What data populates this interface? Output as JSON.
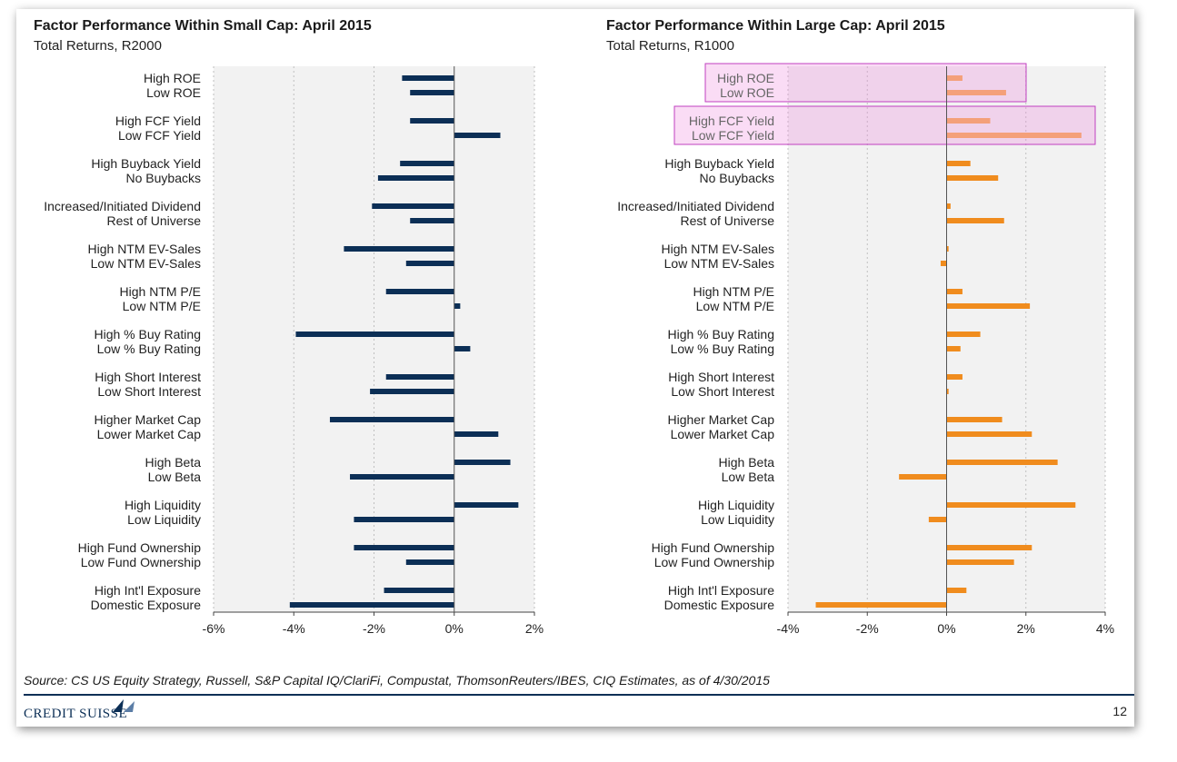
{
  "left": {
    "title": "Factor Performance Within Small Cap: April 2015",
    "subtitle": "Total Returns, R2000"
  },
  "right": {
    "title": "Factor Performance Within Large Cap: April 2015",
    "subtitle": "Total Returns, R1000"
  },
  "footer": {
    "source": "Source: CS US Equity Strategy, Russell, S&P Capital IQ/ClariFi, Compustat, ThomsonReuters/IBES, CIQ Estimates, as of 4/30/2015",
    "logo": "CREDIT SUISSE",
    "page": "12"
  },
  "chart_data": [
    {
      "type": "bar",
      "orientation": "horizontal",
      "title": "Factor Performance Within Small Cap: April 2015",
      "subtitle": "Total Returns, R2000",
      "color": "#0c2f56",
      "xlim": [
        -6,
        2
      ],
      "xticks": [
        -6,
        -4,
        -2,
        0,
        2
      ],
      "tick_labels": [
        "-6%",
        "-4%",
        "-2%",
        "0%",
        "2%"
      ],
      "grid": true,
      "categories": [
        "High ROE",
        "Low ROE",
        "High FCF Yield",
        "Low FCF Yield",
        "High Buyback Yield",
        "No Buybacks",
        "Increased/Initiated Dividend",
        "Rest of Universe",
        "High NTM EV-Sales",
        "Low NTM EV-Sales",
        "High NTM P/E",
        "Low NTM P/E",
        "High % Buy Rating",
        "Low % Buy Rating",
        "High Short Interest",
        "Low Short Interest",
        "Higher Market Cap",
        "Lower Market Cap",
        "High Beta",
        "Low Beta",
        "High Liquidity",
        "Low Liquidity",
        "High Fund Ownership",
        "Low Fund Ownership",
        "High Int'l Exposure",
        "Domestic Exposure"
      ],
      "values": [
        -1.3,
        -1.1,
        -1.1,
        1.15,
        -1.35,
        -1.9,
        -2.05,
        -1.1,
        -2.75,
        -1.2,
        -1.7,
        0.15,
        -3.95,
        0.4,
        -1.7,
        -2.1,
        -3.1,
        1.1,
        1.4,
        -2.6,
        1.6,
        -2.5,
        -2.5,
        -1.2,
        -1.75,
        -4.1
      ]
    },
    {
      "type": "bar",
      "orientation": "horizontal",
      "title": "Factor Performance Within Large Cap: April 2015",
      "subtitle": "Total Returns, R1000",
      "color": "#f08c1e",
      "highlight_color": "#f4a07a",
      "highlighted": [
        "High ROE",
        "Low ROE",
        "High FCF Yield",
        "Low FCF Yield"
      ],
      "xlim": [
        -4,
        4
      ],
      "xticks": [
        -4,
        -2,
        0,
        2,
        4
      ],
      "tick_labels": [
        "-4%",
        "-2%",
        "0%",
        "2%",
        "4%"
      ],
      "grid": true,
      "categories": [
        "High ROE",
        "Low ROE",
        "High FCF Yield",
        "Low FCF Yield",
        "High Buyback Yield",
        "No Buybacks",
        "Increased/Initiated Dividend",
        "Rest of Universe",
        "High NTM EV-Sales",
        "Low NTM EV-Sales",
        "High NTM P/E",
        "Low NTM P/E",
        "High % Buy Rating",
        "Low % Buy Rating",
        "High Short Interest",
        "Low Short Interest",
        "Higher Market Cap",
        "Lower Market Cap",
        "High Beta",
        "Low Beta",
        "High Liquidity",
        "Low Liquidity",
        "High Fund Ownership",
        "Low Fund Ownership",
        "High Int'l Exposure",
        "Domestic Exposure"
      ],
      "values": [
        0.4,
        1.5,
        1.1,
        3.4,
        0.6,
        1.3,
        0.1,
        1.45,
        0.05,
        -0.15,
        0.4,
        2.1,
        0.85,
        0.35,
        0.4,
        0.05,
        1.4,
        2.15,
        2.8,
        -1.2,
        3.25,
        -0.45,
        2.15,
        1.7,
        0.5,
        -3.3
      ]
    }
  ]
}
